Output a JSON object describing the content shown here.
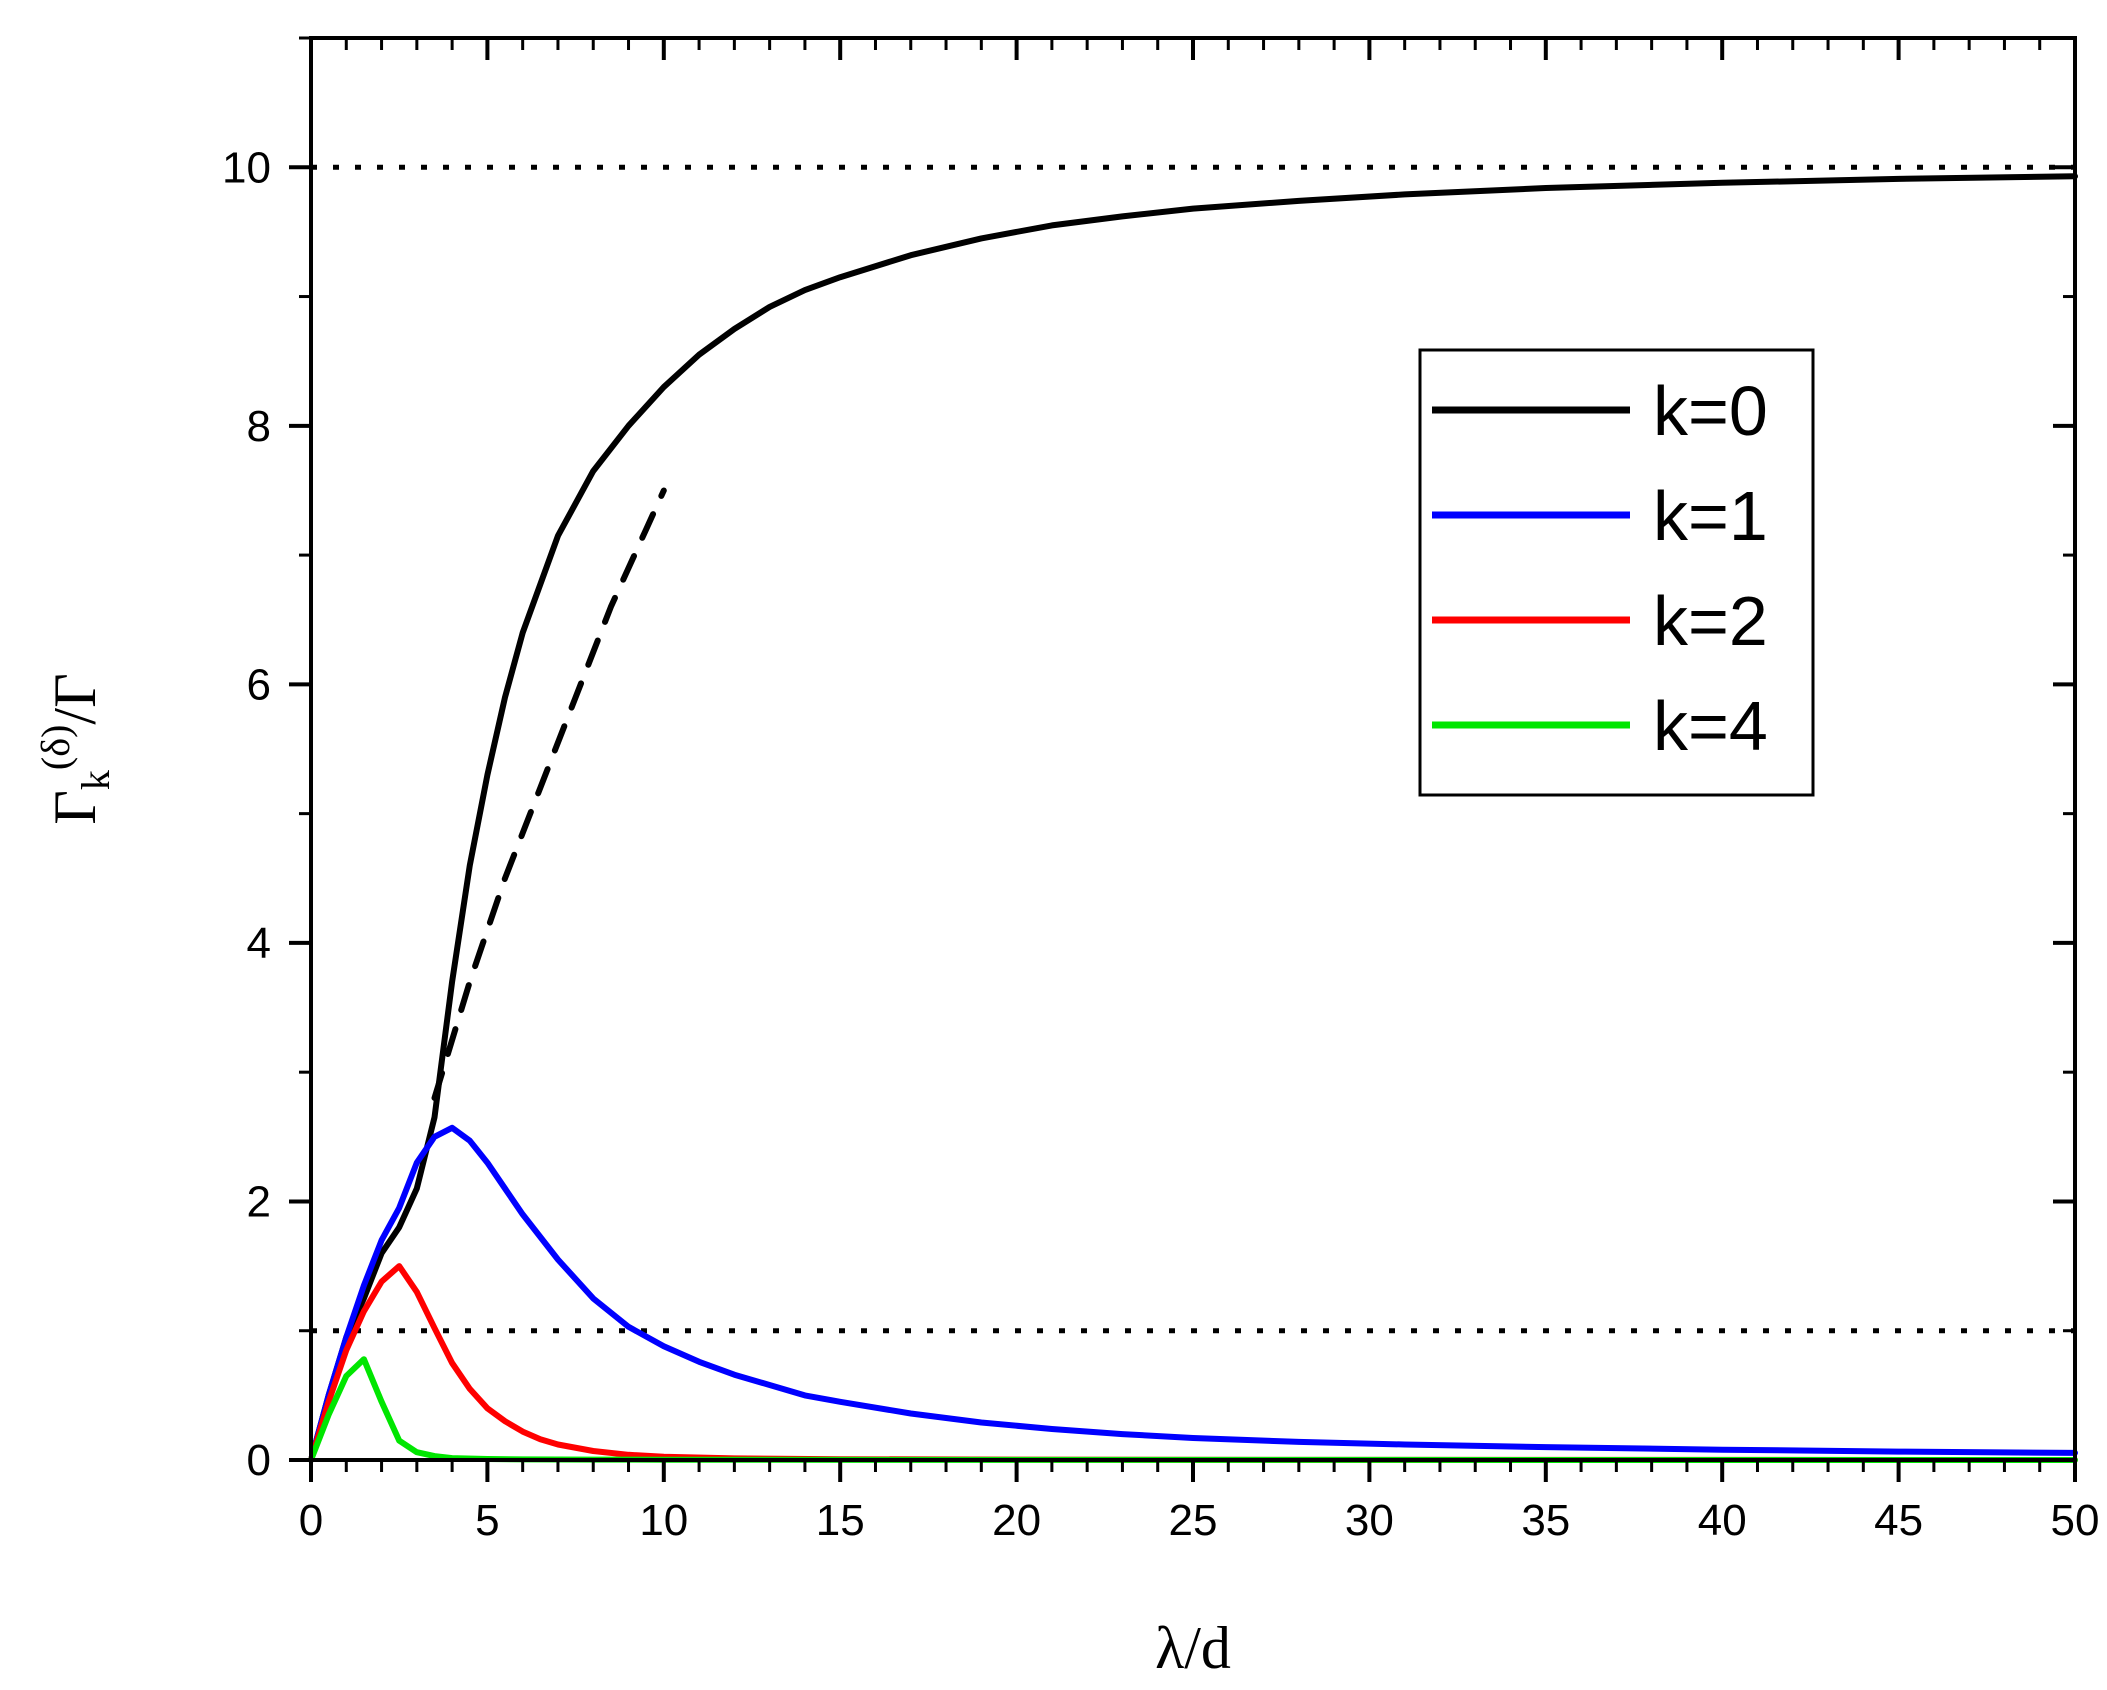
{
  "chart_data": {
    "type": "line",
    "xlabel": "λ/d",
    "ylabel": {
      "main": "Γ",
      "sub": "k",
      "sup": "(δ)",
      "tail": "/Γ"
    },
    "xlim": [
      0,
      50
    ],
    "ylim": [
      0,
      11
    ],
    "xticks": [
      0,
      5,
      10,
      15,
      20,
      25,
      30,
      35,
      40,
      45,
      50
    ],
    "xtick_labels": [
      "0",
      "5",
      "10",
      "15",
      "20",
      "25",
      "30",
      "35",
      "40",
      "45",
      "50"
    ],
    "yticks": [
      0,
      2,
      4,
      6,
      8,
      10
    ],
    "ytick_labels": [
      "0",
      "2",
      "4",
      "6",
      "8",
      "10"
    ],
    "grid": false,
    "legend_position": "center-right",
    "series": [
      {
        "name": "k=0",
        "color": "#000000",
        "style": "solid",
        "x": [
          0,
          0.5,
          1,
          1.5,
          2,
          2.5,
          3,
          3.5,
          4,
          4.5,
          5,
          5.5,
          6,
          7,
          8,
          9,
          10,
          11,
          12,
          13,
          14,
          15,
          17,
          19,
          21,
          23,
          25,
          28,
          31,
          35,
          40,
          45,
          50
        ],
        "y": [
          0,
          0.5,
          0.95,
          1.25,
          1.6,
          1.8,
          2.1,
          2.65,
          3.7,
          4.6,
          5.3,
          5.9,
          6.4,
          7.15,
          7.65,
          8.0,
          8.3,
          8.55,
          8.75,
          8.92,
          9.05,
          9.15,
          9.32,
          9.45,
          9.55,
          9.62,
          9.68,
          9.74,
          9.79,
          9.84,
          9.88,
          9.91,
          9.93
        ]
      },
      {
        "name": "",
        "color": "#000000",
        "style": "dashed",
        "x": [
          3.5,
          4.5,
          5.5,
          6.5,
          7.5,
          8.5,
          9.5,
          10
        ],
        "y": [
          2.8,
          3.7,
          4.5,
          5.2,
          5.9,
          6.6,
          7.2,
          7.5
        ]
      },
      {
        "name": "k=1",
        "color": "#0000ff",
        "style": "solid",
        "x": [
          0,
          0.5,
          1,
          1.5,
          2,
          2.5,
          3,
          3.5,
          4,
          4.5,
          5,
          5.5,
          6,
          7,
          8,
          9,
          10,
          11,
          12,
          13,
          14,
          15,
          17,
          19,
          21,
          23,
          25,
          28,
          31,
          35,
          40,
          45,
          50
        ],
        "y": [
          0,
          0.5,
          0.95,
          1.35,
          1.7,
          1.95,
          2.3,
          2.5,
          2.57,
          2.47,
          2.3,
          2.1,
          1.9,
          1.55,
          1.25,
          1.03,
          0.88,
          0.76,
          0.66,
          0.58,
          0.5,
          0.45,
          0.36,
          0.29,
          0.24,
          0.2,
          0.17,
          0.14,
          0.12,
          0.1,
          0.08,
          0.065,
          0.055
        ]
      },
      {
        "name": "k=2",
        "color": "#ff0000",
        "style": "solid",
        "x": [
          0,
          0.5,
          1,
          1.5,
          2,
          2.5,
          3,
          3.5,
          4,
          4.5,
          5,
          5.5,
          6,
          6.5,
          7,
          8,
          9,
          10,
          12,
          15,
          20,
          30,
          40,
          50
        ],
        "y": [
          0,
          0.45,
          0.85,
          1.15,
          1.38,
          1.5,
          1.3,
          1.02,
          0.75,
          0.55,
          0.4,
          0.3,
          0.22,
          0.16,
          0.12,
          0.07,
          0.04,
          0.025,
          0.012,
          0.006,
          0.003,
          0.001,
          0.0005,
          0
        ]
      },
      {
        "name": "k=4",
        "color": "#00e600",
        "style": "solid",
        "x": [
          0,
          0.5,
          1,
          1.5,
          2,
          2.5,
          3,
          3.5,
          4,
          5,
          6,
          8,
          10,
          20,
          30,
          40,
          50
        ],
        "y": [
          0,
          0.35,
          0.65,
          0.78,
          0.45,
          0.15,
          0.06,
          0.03,
          0.015,
          0.008,
          0.005,
          0.003,
          0.002,
          0.001,
          0.0005,
          0.0002,
          0
        ]
      }
    ],
    "reference_lines": [
      {
        "y": 10,
        "color": "#000000",
        "style": "dotted"
      },
      {
        "y": 1,
        "color": "#000000",
        "style": "dotted"
      }
    ]
  }
}
